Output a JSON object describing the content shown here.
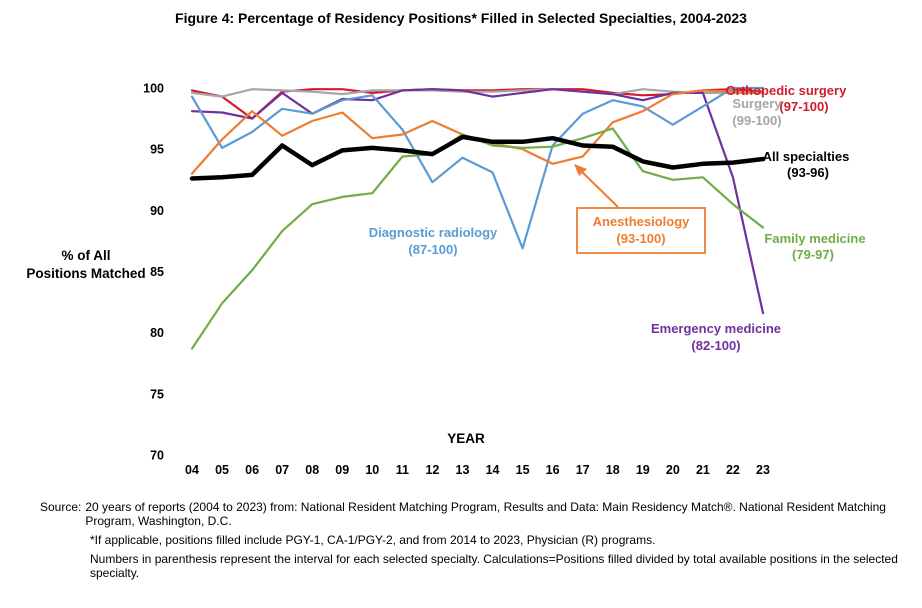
{
  "figure_title": "Figure 4: Percentage of Residency Positions* Filled in Selected Specialties, 2004-2023",
  "chart_data": {
    "type": "line",
    "xlabel": "YEAR",
    "ylabel_lines": [
      "% of All",
      "Positions Matched"
    ],
    "ylim": [
      70,
      100
    ],
    "y_ticks": [
      70,
      75,
      80,
      85,
      90,
      95,
      100
    ],
    "x": [
      "04",
      "05",
      "06",
      "07",
      "08",
      "09",
      "10",
      "11",
      "12",
      "13",
      "14",
      "15",
      "16",
      "17",
      "18",
      "19",
      "20",
      "21",
      "22",
      "23"
    ],
    "grid": false,
    "series": [
      {
        "name": "Orthopedic surgery",
        "range_label": "(97-100)",
        "color": "#d01c2a",
        "values": [
          99.8,
          99.3,
          97.5,
          99.7,
          99.9,
          99.9,
          99.6,
          99.8,
          99.9,
          99.8,
          99.8,
          99.9,
          99.9,
          99.9,
          99.6,
          99.4,
          99.5,
          99.8,
          99.9,
          99.7
        ]
      },
      {
        "name": "Surgery",
        "range_label": "(99-100)",
        "color": "#a6a6a6",
        "values": [
          99.6,
          99.3,
          99.9,
          99.8,
          99.7,
          99.5,
          99.8,
          99.8,
          99.8,
          99.7,
          99.7,
          99.8,
          99.9,
          99.7,
          99.5,
          99.9,
          99.7,
          99.6,
          99.6,
          99.6
        ]
      },
      {
        "name": "Emergency medicine",
        "range_label": "(82-100)",
        "color": "#7030a0",
        "values": [
          98.1,
          98.0,
          97.5,
          99.6,
          97.9,
          99.1,
          99.0,
          99.8,
          99.9,
          99.8,
          99.3,
          99.6,
          99.9,
          99.7,
          99.5,
          99.0,
          99.6,
          99.6,
          92.7,
          81.6
        ]
      },
      {
        "name": "Diagnostic radiology",
        "range_label": "(87-100)",
        "color": "#5b9bd5",
        "values": [
          99.3,
          95.1,
          96.4,
          98.3,
          97.9,
          99.0,
          99.4,
          96.6,
          92.3,
          94.3,
          93.1,
          86.9,
          95.3,
          97.9,
          99.0,
          98.5,
          97.0,
          98.5,
          100.0,
          100.0
        ]
      },
      {
        "name": "Anesthesiology",
        "range_label": "(93-100)",
        "color": "#ed7d31",
        "values": [
          93.0,
          95.8,
          98.1,
          96.1,
          97.3,
          98.0,
          95.9,
          96.2,
          97.3,
          96.2,
          95.5,
          95.0,
          93.8,
          94.4,
          97.2,
          98.1,
          99.5,
          99.8,
          99.7,
          99.6
        ]
      },
      {
        "name": "Family medicine",
        "range_label": "(79-97)",
        "color": "#70ad47",
        "values": [
          78.7,
          82.4,
          85.1,
          88.3,
          90.5,
          91.1,
          91.4,
          94.4,
          94.6,
          96.2,
          95.3,
          95.1,
          95.2,
          95.9,
          96.7,
          93.2,
          92.5,
          92.7,
          90.5,
          88.6
        ]
      },
      {
        "name": "All specialties",
        "range_label": "(93-96)",
        "color": "#000000",
        "values": [
          92.6,
          92.7,
          92.9,
          95.3,
          93.7,
          94.9,
          95.1,
          94.9,
          94.6,
          96.0,
          95.6,
          95.6,
          95.9,
          95.3,
          95.2,
          94.0,
          93.5,
          93.8,
          93.9,
          94.2
        ]
      }
    ]
  },
  "notes": {
    "source_lead": "Source:",
    "source_text": "20 years of reports (2004 to 2023) from: National Resident Matching Program, Results and Data: Main Residency Match®. National Resident Matching Program, Washington, D.C.",
    "footnote": "*If applicable, positions filled include PGY-1, CA-1/PGY-2, and from 2014 to 2023, Physician (R) programs.",
    "method": "Numbers in parenthesis represent the interval for each selected specialty. Calculations=Positions filled divided by total available positions in the selected specialty."
  }
}
